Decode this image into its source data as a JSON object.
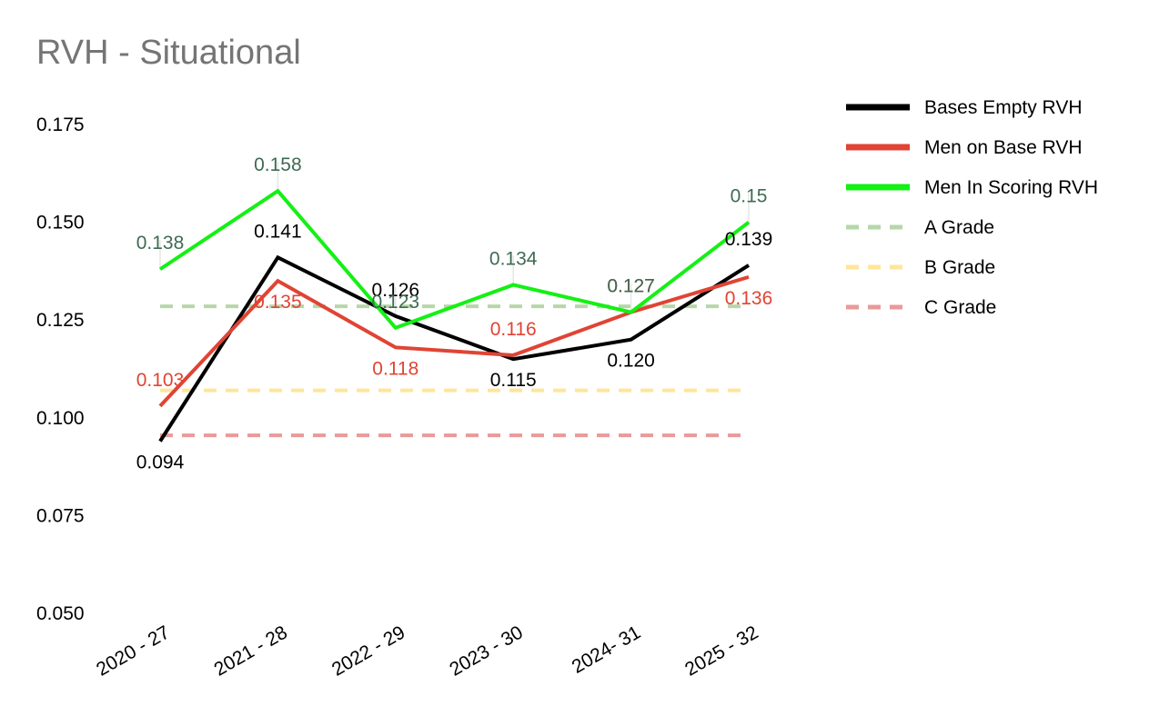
{
  "chart_data": {
    "type": "line",
    "title": "RVH - Situational",
    "xlabel": "",
    "ylabel": "",
    "categories": [
      "2020 - 27",
      "2021 - 28",
      "2022 - 29",
      "2023 - 30",
      "2024- 31",
      "2025 - 32"
    ],
    "yticks": [
      "0.050",
      "0.075",
      "0.100",
      "0.125",
      "0.150",
      "0.175"
    ],
    "ylim": [
      0.05,
      0.175
    ],
    "grid": false,
    "legend_position": "right",
    "series": [
      {
        "name": "Bases Empty RVH",
        "color": "#000000",
        "values": [
          0.094,
          0.141,
          0.126,
          0.115,
          0.12,
          0.139
        ],
        "labels": [
          "0.094",
          "0.141",
          "0.126",
          "0.115",
          "0.120",
          "0.139"
        ],
        "label_color": "#000000"
      },
      {
        "name": "Men on Base RVH",
        "color": "#e04434",
        "values": [
          0.103,
          0.135,
          0.118,
          0.116,
          0.127,
          0.136
        ],
        "labels": [
          "0.103",
          "0.135",
          "0.118",
          "0.116",
          "0.127",
          "0.136"
        ],
        "label_color": "#e04434"
      },
      {
        "name": "Men In Scoring RVH",
        "color": "#14f014",
        "values": [
          0.138,
          0.158,
          0.123,
          0.134,
          0.127,
          0.15
        ],
        "labels": [
          "0.138",
          "0.158",
          "0.123",
          "0.134",
          "0.127",
          "0.15"
        ],
        "label_color": "#3e6b52"
      }
    ],
    "reference_lines": [
      {
        "name": "A Grade",
        "value": 0.1285,
        "color": "#b6d7a8"
      },
      {
        "name": "B Grade",
        "value": 0.107,
        "color": "#ffe599"
      },
      {
        "name": "C Grade",
        "value": 0.0955,
        "color": "#ea9999"
      }
    ]
  }
}
